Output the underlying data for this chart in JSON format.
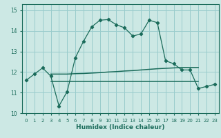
{
  "xlabel": "Humidex (Indice chaleur)",
  "background_color": "#cce8e4",
  "grid_color": "#99cccc",
  "line_color": "#1a6b5a",
  "xlim": [
    -0.5,
    23.5
  ],
  "ylim": [
    10.0,
    15.3
  ],
  "yticks": [
    10,
    11,
    12,
    13,
    14,
    15
  ],
  "xticks": [
    0,
    1,
    2,
    3,
    4,
    5,
    6,
    7,
    8,
    9,
    10,
    11,
    12,
    13,
    14,
    15,
    16,
    17,
    18,
    19,
    20,
    21,
    22,
    23
  ],
  "line1_x": [
    0,
    1,
    2,
    3,
    4,
    5,
    6,
    7,
    8,
    9,
    10,
    11,
    12,
    13,
    14,
    15,
    16,
    17,
    18,
    19,
    20,
    21,
    22,
    23
  ],
  "line1_y": [
    11.6,
    11.9,
    12.2,
    11.8,
    10.35,
    11.05,
    12.7,
    13.5,
    14.2,
    14.52,
    14.55,
    14.3,
    14.15,
    13.75,
    13.85,
    14.52,
    14.4,
    12.55,
    12.4,
    12.1,
    12.1,
    11.2,
    11.3,
    11.4
  ],
  "line2_x": [
    3,
    4,
    5,
    6,
    7,
    8,
    9,
    10,
    11,
    12,
    13,
    14,
    15,
    16,
    17,
    18,
    19,
    20,
    21
  ],
  "line2_y": [
    11.9,
    11.9,
    11.9,
    11.92,
    11.93,
    11.95,
    11.97,
    12.0,
    12.02,
    12.05,
    12.07,
    12.1,
    12.13,
    12.16,
    12.18,
    12.2,
    12.22,
    12.22,
    12.22
  ],
  "line3_x": [
    3,
    4,
    5,
    6,
    7,
    8,
    9,
    10,
    11,
    12,
    13,
    14,
    15,
    16,
    17,
    18,
    19,
    20,
    21
  ],
  "line3_y": [
    11.55,
    11.55,
    11.55,
    11.55,
    11.55,
    11.55,
    11.55,
    11.55,
    11.55,
    11.55,
    11.55,
    11.55,
    11.55,
    11.55,
    11.55,
    11.55,
    11.55,
    11.55,
    11.55
  ]
}
